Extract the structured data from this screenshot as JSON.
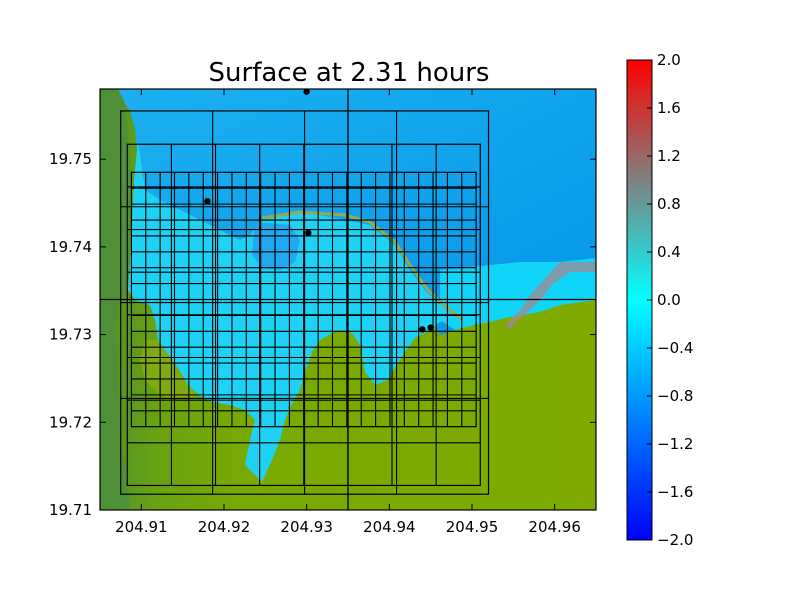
{
  "chart_data": {
    "type": "heatmap",
    "title": "Surface at 2.31 hours",
    "xlabel": "",
    "ylabel": "",
    "x_ticks": [
      "204.91",
      "204.92",
      "204.93",
      "204.94",
      "204.95",
      "204.96"
    ],
    "x_tick_values": [
      204.91,
      204.92,
      204.93,
      204.94,
      204.95,
      204.96
    ],
    "y_ticks": [
      "19.71",
      "19.72",
      "19.73",
      "19.74",
      "19.75"
    ],
    "y_tick_values": [
      19.71,
      19.72,
      19.73,
      19.74,
      19.75
    ],
    "xlim": [
      204.905,
      204.965
    ],
    "ylim": [
      19.71,
      19.758
    ],
    "colorbar": {
      "ticks": [
        "2.0",
        "1.6",
        "1.2",
        "0.8",
        "0.4",
        "0.0",
        "−0.4",
        "−0.8",
        "−1.2",
        "−1.6",
        "−2.0"
      ],
      "tick_values": [
        2.0,
        1.6,
        1.2,
        0.8,
        0.4,
        0.0,
        -0.4,
        -0.8,
        -1.2,
        -1.6,
        -2.0
      ],
      "range": [
        -2.0,
        2.0
      ],
      "colors": {
        "min": "#0000ff",
        "mid": "#00ffff",
        "mid_high": "#808080",
        "max": "#ff0000"
      }
    },
    "regions": {
      "ocean_color": "#0aa8ee",
      "bay_color": "#1ed2f5",
      "land_color": "#78aa00",
      "dark_land_color": "#55962a"
    },
    "gauges": [
      {
        "x": 204.93,
        "y": 19.7577
      },
      {
        "x": 204.918,
        "y": 19.7452
      },
      {
        "x": 204.9302,
        "y": 19.7416
      },
      {
        "x": 204.944,
        "y": 19.7306
      },
      {
        "x": 204.945,
        "y": 19.7308
      }
    ],
    "grid_lines": [
      {
        "x": 204.935
      },
      {
        "y": 19.734
      }
    ],
    "patches": [
      {
        "x0": 204.9075,
        "x1": 204.952,
        "y0": 19.7118,
        "y1": 19.7555,
        "nx": 4,
        "ny": 4
      },
      {
        "x0": 204.9083,
        "x1": 204.951,
        "y0": 19.7128,
        "y1": 19.7517,
        "nx": 8,
        "ny": 8
      },
      {
        "x0": 204.9088,
        "x1": 204.9505,
        "y0": 19.7195,
        "y1": 19.7485,
        "nx": 24,
        "ny": 16
      }
    ],
    "grid": false
  }
}
